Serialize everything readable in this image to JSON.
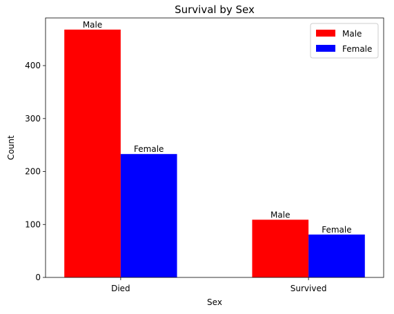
{
  "chart_data": {
    "type": "bar",
    "title": "Survival by Sex",
    "xlabel": "Sex",
    "ylabel": "Count",
    "categories": [
      "Died",
      "Survived"
    ],
    "series": [
      {
        "name": "Male",
        "values": [
          468,
          109
        ],
        "color": "#ff0000",
        "bar_label": "Male"
      },
      {
        "name": "Female",
        "values": [
          233,
          81
        ],
        "color": "#0000ff",
        "bar_label": "Female"
      }
    ],
    "ylim": [
      0,
      490
    ],
    "yticks": [
      0,
      100,
      200,
      300,
      400
    ],
    "grid": false,
    "legend_position": "top-right"
  }
}
